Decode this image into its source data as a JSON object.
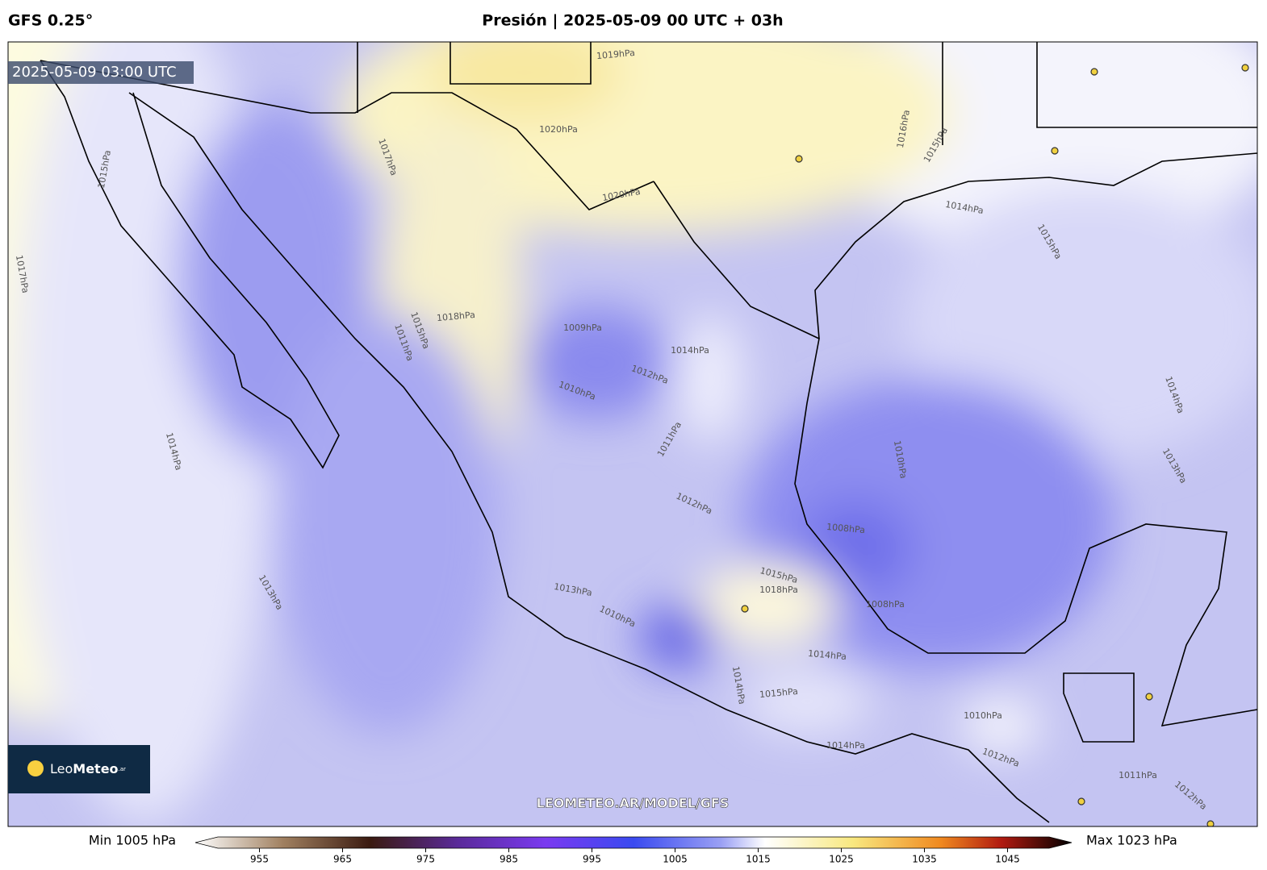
{
  "header": {
    "model": "GFS 0.25°",
    "title": "Presión | 2025-05-09 00 UTC + 03h"
  },
  "map": {
    "valid_time": "2025-05-09 03:00 UTC",
    "watermark": "LEOMETEO.AR/MODEL/GFS",
    "logo": {
      "brand_light": "Leo",
      "brand_bold": "Meteo",
      "suffix": ".ar"
    },
    "contour_labels": [
      "1019hPa",
      "1020hPa",
      "1020hPa",
      "1018hPa",
      "1017hPa",
      "1015hPa",
      "1014hPa",
      "1015hPa",
      "1016hPa",
      "1009hPa",
      "1010hPa",
      "1012hPa",
      "1014hPa",
      "1011hPa",
      "1012hPa",
      "1008hPa",
      "1008hPa",
      "1010hPa",
      "1014hPa",
      "1013hPa",
      "1014hPa",
      "1013hPa",
      "1015hPa",
      "1018hPa",
      "1014hPa",
      "1015hPa",
      "1014hPa",
      "1010hPa",
      "1012hPa",
      "1011hPa",
      "1012hPa",
      "1013hPa",
      "1010hPa",
      "1015hPa",
      "1017hPa",
      "1011hPa",
      "1015hPa",
      "1014hPa"
    ]
  },
  "colorbar": {
    "min_label": "Min 1005 hPa",
    "max_label": "Max 1023 hPa",
    "range": [
      950,
      1050
    ],
    "ticks": [
      955,
      965,
      975,
      985,
      995,
      1005,
      1015,
      1025,
      1035,
      1045
    ]
  }
}
